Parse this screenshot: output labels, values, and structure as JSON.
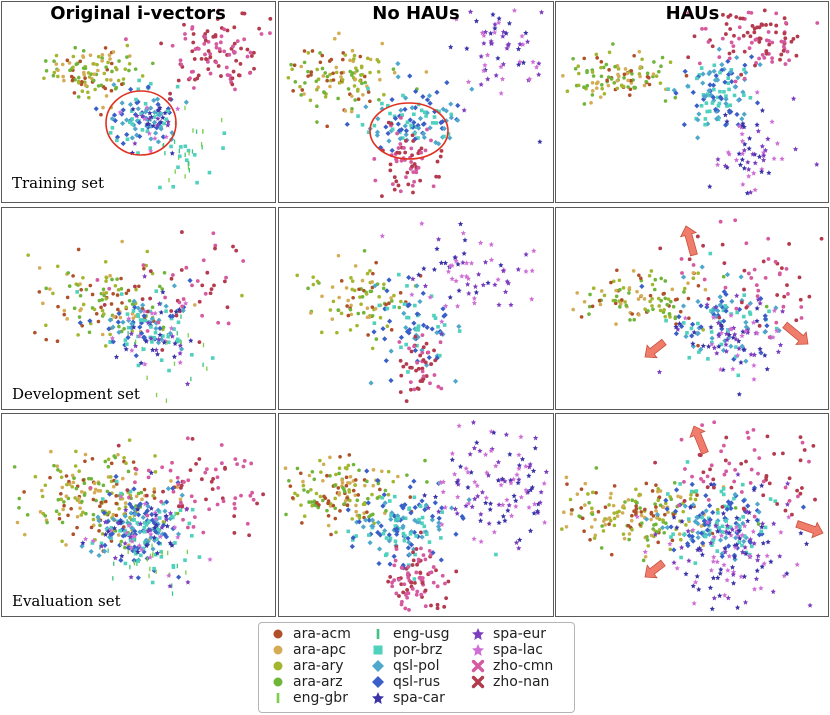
{
  "column_titles": [
    "Original i-vectors",
    "No HAUs",
    "HAUs"
  ],
  "row_labels": [
    "Training set",
    "Development set",
    "Evaluation set"
  ],
  "legend": [
    {
      "name": "ara-acm",
      "color": "#b0502a",
      "marker": "circle"
    },
    {
      "name": "ara-apc",
      "color": "#d4ac55",
      "marker": "circle"
    },
    {
      "name": "ara-ary",
      "color": "#a4b630",
      "marker": "circle"
    },
    {
      "name": "ara-arz",
      "color": "#6fb53a",
      "marker": "circle"
    },
    {
      "name": "eng-gbr",
      "color": "#7ccf4a",
      "marker": "vline"
    },
    {
      "name": "eng-usg",
      "color": "#3fc283",
      "marker": "vline"
    },
    {
      "name": "por-brz",
      "color": "#4fd1bd",
      "marker": "square"
    },
    {
      "name": "qsl-pol",
      "color": "#4fa7cc",
      "marker": "diamond"
    },
    {
      "name": "qsl-rus",
      "color": "#3a5fc8",
      "marker": "diamond"
    },
    {
      "name": "spa-car",
      "color": "#3b34a8",
      "marker": "star"
    },
    {
      "name": "spa-eur",
      "color": "#7d3dbf",
      "marker": "star"
    },
    {
      "name": "spa-lac",
      "color": "#cf6fd6",
      "marker": "star"
    },
    {
      "name": "zho-cmn",
      "color": "#d65aa0",
      "marker": "cross"
    },
    {
      "name": "zho-nan",
      "color": "#b43a4e",
      "marker": "cross"
    }
  ],
  "chart_data": {
    "type": "scatter",
    "layout": "3x3 grid of 2-D projection scatter plots",
    "rows": [
      "Training set",
      "Development set",
      "Evaluation set"
    ],
    "columns": [
      "Original i-vectors",
      "No HAUs",
      "HAUs"
    ],
    "series": [
      "ara-acm",
      "ara-apc",
      "ara-ary",
      "ara-arz",
      "eng-gbr",
      "eng-usg",
      "por-brz",
      "qsl-pol",
      "qsl-rus",
      "spa-car",
      "spa-eur",
      "spa-lac",
      "zho-cmn",
      "zho-nan"
    ],
    "note": "Individual point coordinates are not labeled; cluster centers (normalized 0-1 panel units) approximate the visible distribution.",
    "clusters": {
      "Original i-vectors": {
        "Training set": {
          "ara": [
            0.33,
            0.35
          ],
          "qsl": [
            0.52,
            0.6
          ],
          "eng": [
            0.68,
            0.75
          ],
          "zho": [
            0.78,
            0.25
          ]
        },
        "Development set": {
          "ara": [
            0.38,
            0.45
          ],
          "qsl": [
            0.52,
            0.58
          ],
          "eng": [
            0.6,
            0.68
          ],
          "zho": [
            0.72,
            0.4
          ]
        },
        "Evaluation set": {
          "ara": [
            0.35,
            0.42
          ],
          "qsl": [
            0.5,
            0.55
          ],
          "eng": [
            0.55,
            0.7
          ],
          "zho": [
            0.7,
            0.35
          ]
        }
      },
      "No HAUs": {
        "Training set": {
          "ara": [
            0.2,
            0.38
          ],
          "qsl": [
            0.48,
            0.58
          ],
          "zho": [
            0.48,
            0.8
          ],
          "spa": [
            0.8,
            0.25
          ]
        },
        "Development set": {
          "ara": [
            0.3,
            0.45
          ],
          "qsl": [
            0.5,
            0.6
          ],
          "zho": [
            0.5,
            0.8
          ],
          "spa": [
            0.7,
            0.35
          ]
        },
        "Evaluation set": {
          "ara": [
            0.2,
            0.4
          ],
          "qsl": [
            0.45,
            0.55
          ],
          "zho": [
            0.5,
            0.82
          ],
          "spa": [
            0.78,
            0.35
          ]
        }
      },
      "HAUs": {
        "Training set": {
          "ara": [
            0.25,
            0.4
          ],
          "qsl": [
            0.6,
            0.45
          ],
          "zho": [
            0.72,
            0.2
          ],
          "spa": [
            0.72,
            0.75
          ]
        },
        "Development set": {
          "ara": [
            0.35,
            0.45
          ],
          "qsl": [
            0.6,
            0.55
          ],
          "zho": [
            0.72,
            0.3
          ],
          "spa": [
            0.65,
            0.65
          ]
        },
        "Evaluation set": {
          "ara": [
            0.3,
            0.5
          ],
          "qsl": [
            0.6,
            0.55
          ],
          "zho": [
            0.72,
            0.3
          ],
          "spa": [
            0.62,
            0.7
          ]
        }
      }
    },
    "annotations": [
      "red ellipse around qsl cluster (Original i-vectors, Training set)",
      "red ellipse around qsl cluster (No HAUs, Training set)",
      "red outward arrows in HAUs Development and Evaluation panels"
    ]
  }
}
